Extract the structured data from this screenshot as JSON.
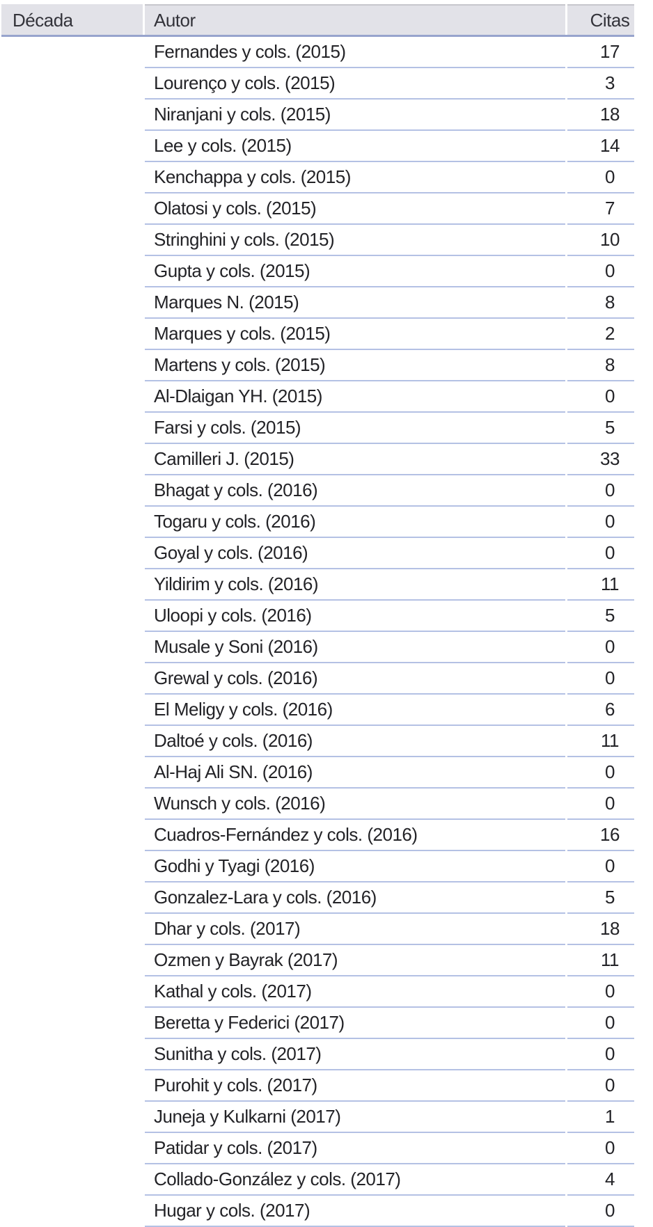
{
  "theme": {
    "header_bg": "#e2e2e8",
    "header_border": "#97a4cd",
    "row_line": "#b4c1e4",
    "hairline": "#c6c7cc",
    "header_text": "#33333a",
    "body_text": "#232327",
    "page_bg": "#ffffff"
  },
  "table": {
    "columns": [
      {
        "key": "decada",
        "label": "Década"
      },
      {
        "key": "autor",
        "label": "Autor"
      },
      {
        "key": "citas",
        "label": "Citas"
      }
    ],
    "rows": [
      {
        "autor": "Fernandes y cols. (2015)",
        "citas": "17"
      },
      {
        "autor": "Lourenço y cols. (2015)",
        "citas": "3"
      },
      {
        "autor": "Niranjani y cols. (2015)",
        "citas": "18"
      },
      {
        "autor": "Lee y cols. (2015)",
        "citas": "14"
      },
      {
        "autor": "Kenchappa y cols. (2015)",
        "citas": "0"
      },
      {
        "autor": "Olatosi y cols. (2015)",
        "citas": "7"
      },
      {
        "autor": "Stringhini y cols. (2015)",
        "citas": "10"
      },
      {
        "autor": "Gupta y cols. (2015)",
        "citas": "0"
      },
      {
        "autor": "Marques N. (2015)",
        "citas": "8"
      },
      {
        "autor": "Marques y cols. (2015)",
        "citas": "2"
      },
      {
        "autor": "Martens y cols. (2015)",
        "citas": "8"
      },
      {
        "autor": "Al-Dlaigan YH. (2015)",
        "citas": "0"
      },
      {
        "autor": "Farsi y cols. (2015)",
        "citas": "5"
      },
      {
        "autor": "Camilleri J. (2015)",
        "citas": "33"
      },
      {
        "autor": "Bhagat y cols. (2016)",
        "citas": "0"
      },
      {
        "autor": "Togaru y cols. (2016)",
        "citas": "0"
      },
      {
        "autor": "Goyal y cols. (2016)",
        "citas": "0"
      },
      {
        "autor": "Yildirim y cols. (2016)",
        "citas": "11"
      },
      {
        "autor": "Uloopi y cols. (2016)",
        "citas": "5"
      },
      {
        "autor": "Musale y Soni (2016)",
        "citas": "0"
      },
      {
        "autor": "Grewal y cols. (2016)",
        "citas": "0"
      },
      {
        "autor": "El Meligy y cols. (2016)",
        "citas": "6"
      },
      {
        "autor": "Daltoé y cols. (2016)",
        "citas": "11"
      },
      {
        "autor": "Al-Haj Ali SN. (2016)",
        "citas": "0"
      },
      {
        "autor": "Wunsch y cols. (2016)",
        "citas": "0"
      },
      {
        "autor": "Cuadros-Fernández y cols. (2016)",
        "citas": "16"
      },
      {
        "autor": "Godhi y Tyagi (2016)",
        "citas": "0"
      },
      {
        "autor": "Gonzalez-Lara y cols. (2016)",
        "citas": "5"
      },
      {
        "autor": "Dhar y cols. (2017)",
        "citas": "18"
      },
      {
        "autor": "Ozmen y Bayrak (2017)",
        "citas": "11"
      },
      {
        "autor": "Kathal y cols. (2017)",
        "citas": "0"
      },
      {
        "autor": "Beretta y Federici (2017)",
        "citas": "0"
      },
      {
        "autor": "Sunitha y cols. (2017)",
        "citas": "0"
      },
      {
        "autor": "Purohit y cols. (2017)",
        "citas": "0"
      },
      {
        "autor": "Juneja y Kulkarni (2017)",
        "citas": "1"
      },
      {
        "autor": "Patidar y cols. (2017)",
        "citas": "0"
      },
      {
        "autor": "Collado-González y cols. (2017)",
        "citas": "4"
      },
      {
        "autor": "Hugar y cols. (2017)",
        "citas": "0"
      }
    ]
  }
}
